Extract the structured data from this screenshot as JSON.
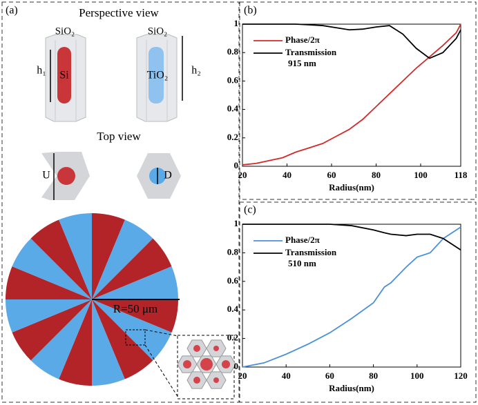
{
  "panel_a": {
    "label": "(a)",
    "perspective_title": "Perspective view",
    "top_title": "Top view",
    "pillar_1": {
      "cap": "SiO₂",
      "core": "Si",
      "height": "h₁",
      "width": "U"
    },
    "pillar_2": {
      "cap": "SiO₂",
      "core": "TiO₂",
      "height": "h₂",
      "diameter": "D"
    },
    "lens_radius": "R=50 μm"
  },
  "chart_data": [
    {
      "type": "line",
      "label": "(b)",
      "xlabel": "Radius(nm)",
      "annotation": "915 nm",
      "x": [
        20,
        26,
        32,
        38,
        44,
        50,
        56,
        62,
        68,
        74,
        80,
        86,
        92,
        98,
        104,
        110,
        116,
        118
      ],
      "xlim": [
        20,
        118
      ],
      "xticks": [
        20,
        40,
        60,
        80,
        100,
        118
      ],
      "ylim": [
        0,
        1
      ],
      "yticks": [
        0,
        0.2,
        0.4,
        0.6,
        0.8,
        1
      ],
      "series": [
        {
          "name": "Phase/2π",
          "color": "#d62728",
          "values": [
            0.01,
            0.02,
            0.04,
            0.06,
            0.1,
            0.13,
            0.16,
            0.21,
            0.26,
            0.33,
            0.42,
            0.51,
            0.6,
            0.69,
            0.77,
            0.85,
            0.94,
            1.0
          ]
        },
        {
          "name": "Transmission",
          "color": "#000000",
          "values": [
            1,
            1,
            1,
            1,
            1,
            0.995,
            0.99,
            0.975,
            0.96,
            0.965,
            0.98,
            0.99,
            0.93,
            0.83,
            0.76,
            0.8,
            0.9,
            0.96
          ]
        }
      ]
    },
    {
      "type": "line",
      "label": "(c)",
      "xlabel": "Radius(nm)",
      "annotation": "510 nm",
      "x": [
        20,
        30,
        40,
        50,
        60,
        70,
        80,
        85,
        88,
        95,
        100,
        106,
        112,
        120
      ],
      "xlim": [
        20,
        120
      ],
      "xticks": [
        20,
        40,
        60,
        80,
        100,
        120
      ],
      "ylim": [
        0,
        1
      ],
      "yticks": [
        0,
        0.2,
        0.4,
        0.6,
        0.8,
        1
      ],
      "series": [
        {
          "name": "Phase/2π",
          "color": "#4a90d9",
          "values": [
            0,
            0.03,
            0.09,
            0.16,
            0.24,
            0.34,
            0.45,
            0.56,
            0.59,
            0.7,
            0.77,
            0.8,
            0.9,
            0.98
          ]
        },
        {
          "name": "Transmission",
          "color": "#000000",
          "values": [
            1,
            1,
            1,
            1,
            1,
            0.99,
            0.96,
            0.94,
            0.93,
            0.92,
            0.93,
            0.93,
            0.9,
            0.82
          ]
        }
      ]
    }
  ]
}
